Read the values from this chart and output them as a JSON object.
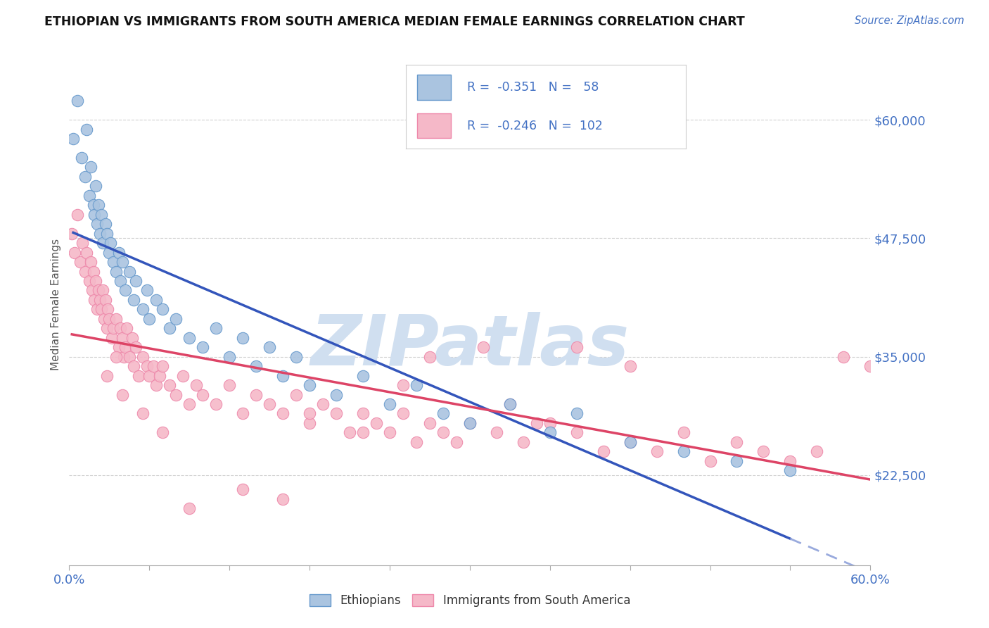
{
  "title": "ETHIOPIAN VS IMMIGRANTS FROM SOUTH AMERICA MEDIAN FEMALE EARNINGS CORRELATION CHART",
  "source_text": "Source: ZipAtlas.com",
  "ylabel": "Median Female Earnings",
  "x_min": 0.0,
  "x_max": 0.6,
  "y_min": 13000,
  "y_max": 68000,
  "y_ticks": [
    22500,
    35000,
    47500,
    60000
  ],
  "y_tick_labels": [
    "$22,500",
    "$35,000",
    "$47,500",
    "$60,000"
  ],
  "x_ticks": [
    0.0,
    0.06,
    0.12,
    0.18,
    0.24,
    0.3,
    0.36,
    0.42,
    0.48,
    0.54,
    0.6
  ],
  "blue_R": -0.351,
  "blue_N": 58,
  "pink_R": -0.246,
  "pink_N": 102,
  "blue_color": "#aac4e0",
  "pink_color": "#f5b8c8",
  "blue_edge": "#6699cc",
  "pink_edge": "#ee88aa",
  "trend_blue": "#3355bb",
  "trend_pink": "#dd4466",
  "trend_blue_dashed": "#99aadd",
  "watermark_color": "#d0dff0",
  "watermark_text": "ZIPatlas",
  "background_color": "#ffffff",
  "legend_box_color": "#ffffff",
  "legend_edge_color": "#cccccc",
  "blue_scatter_x": [
    0.003,
    0.006,
    0.009,
    0.012,
    0.013,
    0.015,
    0.016,
    0.018,
    0.019,
    0.02,
    0.021,
    0.022,
    0.023,
    0.024,
    0.025,
    0.027,
    0.028,
    0.03,
    0.031,
    0.033,
    0.035,
    0.037,
    0.038,
    0.04,
    0.042,
    0.045,
    0.048,
    0.05,
    0.055,
    0.058,
    0.06,
    0.065,
    0.07,
    0.075,
    0.08,
    0.09,
    0.1,
    0.11,
    0.12,
    0.13,
    0.14,
    0.15,
    0.16,
    0.17,
    0.18,
    0.2,
    0.22,
    0.24,
    0.26,
    0.28,
    0.3,
    0.33,
    0.36,
    0.38,
    0.42,
    0.46,
    0.5,
    0.54
  ],
  "blue_scatter_y": [
    58000,
    62000,
    56000,
    54000,
    59000,
    52000,
    55000,
    51000,
    50000,
    53000,
    49000,
    51000,
    48000,
    50000,
    47000,
    49000,
    48000,
    46000,
    47000,
    45000,
    44000,
    46000,
    43000,
    45000,
    42000,
    44000,
    41000,
    43000,
    40000,
    42000,
    39000,
    41000,
    40000,
    38000,
    39000,
    37000,
    36000,
    38000,
    35000,
    37000,
    34000,
    36000,
    33000,
    35000,
    32000,
    31000,
    33000,
    30000,
    32000,
    29000,
    28000,
    30000,
    27000,
    29000,
    26000,
    25000,
    24000,
    23000
  ],
  "pink_scatter_x": [
    0.002,
    0.004,
    0.006,
    0.008,
    0.01,
    0.012,
    0.013,
    0.015,
    0.016,
    0.017,
    0.018,
    0.019,
    0.02,
    0.021,
    0.022,
    0.023,
    0.024,
    0.025,
    0.026,
    0.027,
    0.028,
    0.029,
    0.03,
    0.032,
    0.033,
    0.035,
    0.037,
    0.038,
    0.04,
    0.041,
    0.042,
    0.043,
    0.045,
    0.047,
    0.048,
    0.05,
    0.052,
    0.055,
    0.058,
    0.06,
    0.063,
    0.065,
    0.068,
    0.07,
    0.075,
    0.08,
    0.085,
    0.09,
    0.095,
    0.1,
    0.11,
    0.12,
    0.13,
    0.14,
    0.15,
    0.16,
    0.17,
    0.18,
    0.19,
    0.2,
    0.21,
    0.22,
    0.23,
    0.24,
    0.25,
    0.26,
    0.27,
    0.28,
    0.29,
    0.3,
    0.32,
    0.34,
    0.36,
    0.38,
    0.4,
    0.42,
    0.44,
    0.46,
    0.48,
    0.5,
    0.52,
    0.54,
    0.56,
    0.58,
    0.6,
    0.38,
    0.42,
    0.31,
    0.27,
    0.33,
    0.25,
    0.35,
    0.18,
    0.22,
    0.16,
    0.13,
    0.09,
    0.07,
    0.055,
    0.04,
    0.035,
    0.028
  ],
  "pink_scatter_y": [
    48000,
    46000,
    50000,
    45000,
    47000,
    44000,
    46000,
    43000,
    45000,
    42000,
    44000,
    41000,
    43000,
    40000,
    42000,
    41000,
    40000,
    42000,
    39000,
    41000,
    38000,
    40000,
    39000,
    37000,
    38000,
    39000,
    36000,
    38000,
    37000,
    35000,
    36000,
    38000,
    35000,
    37000,
    34000,
    36000,
    33000,
    35000,
    34000,
    33000,
    34000,
    32000,
    33000,
    34000,
    32000,
    31000,
    33000,
    30000,
    32000,
    31000,
    30000,
    32000,
    29000,
    31000,
    30000,
    29000,
    31000,
    28000,
    30000,
    29000,
    27000,
    29000,
    28000,
    27000,
    29000,
    26000,
    28000,
    27000,
    26000,
    28000,
    27000,
    26000,
    28000,
    27000,
    25000,
    26000,
    25000,
    27000,
    24000,
    26000,
    25000,
    24000,
    25000,
    35000,
    34000,
    36000,
    34000,
    36000,
    35000,
    30000,
    32000,
    28000,
    29000,
    27000,
    20000,
    21000,
    19000,
    27000,
    29000,
    31000,
    35000,
    33000
  ]
}
